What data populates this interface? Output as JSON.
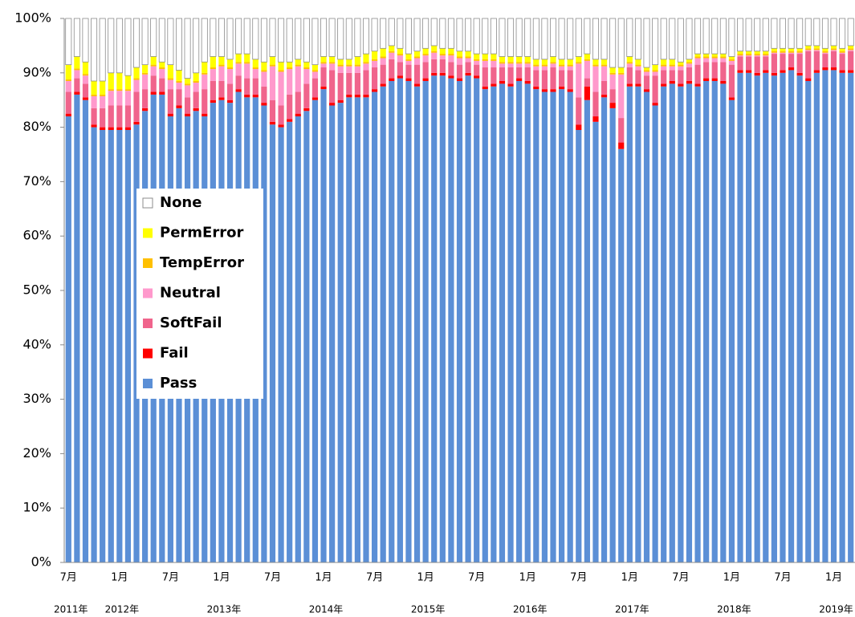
{
  "chart_data": {
    "type": "stacked_bar",
    "categories": [
      "7月",
      null,
      null,
      null,
      null,
      null,
      "1月",
      null,
      null,
      null,
      null,
      null,
      "7月",
      null,
      null,
      null,
      null,
      null,
      "1月",
      null,
      null,
      null,
      null,
      null,
      "7月",
      null,
      null,
      null,
      null,
      null,
      "1月",
      null,
      null,
      null,
      null,
      null,
      "7月",
      null,
      null,
      null,
      null,
      null,
      "1月",
      null,
      null,
      null,
      null,
      null,
      "7月",
      null,
      null,
      null,
      null,
      null,
      "1月",
      null,
      null,
      null,
      null,
      null,
      "7月",
      null,
      null,
      null,
      null,
      null,
      "1月",
      null,
      null,
      null,
      null,
      null,
      "7月",
      null,
      null,
      null,
      null,
      null,
      "1月",
      null,
      null,
      null,
      null,
      null,
      "7月",
      null,
      null,
      null,
      null,
      null,
      "1月",
      null,
      null
    ],
    "year_categories": [
      "2011年",
      null,
      null,
      null,
      null,
      null,
      "2012年",
      null,
      null,
      null,
      null,
      null,
      null,
      null,
      null,
      null,
      null,
      null,
      "2013年",
      null,
      null,
      null,
      null,
      null,
      null,
      null,
      null,
      null,
      null,
      null,
      "2014年",
      null,
      null,
      null,
      null,
      null,
      null,
      null,
      null,
      null,
      null,
      null,
      "2015年",
      null,
      null,
      null,
      null,
      null,
      null,
      null,
      null,
      null,
      null,
      null,
      "2016年",
      null,
      null,
      null,
      null,
      null,
      null,
      null,
      null,
      null,
      null,
      null,
      "2017年",
      null,
      null,
      null,
      null,
      null,
      null,
      null,
      null,
      null,
      null,
      null,
      "2018年",
      null,
      null,
      null,
      null,
      null,
      null,
      null,
      null,
      null,
      null,
      null,
      "2019年",
      null,
      null
    ],
    "series": [
      {
        "name": "Pass",
        "color": "#5b8fd6",
        "values": [
          82,
          86,
          85,
          80,
          79.5,
          79.5,
          79.5,
          79.5,
          80.5,
          83,
          86,
          86,
          82,
          83.5,
          82,
          83,
          82,
          84.5,
          85,
          84.5,
          86.5,
          85.5,
          85.5,
          84,
          80.5,
          80,
          81,
          82,
          83,
          85,
          87,
          84,
          84.5,
          85.5,
          85.5,
          85.5,
          86.5,
          87.5,
          88.5,
          89,
          88.5,
          87.5,
          88.5,
          89.5,
          89.5,
          89,
          88.5,
          89.5,
          89,
          87,
          87.5,
          88,
          87.5,
          88.5,
          88,
          87,
          86.5,
          86.5,
          87,
          86.5,
          79.5,
          85,
          81,
          85.5,
          83.5,
          76,
          87.5,
          87.5,
          86.5,
          84,
          87.5,
          88,
          87.5,
          88,
          87.5,
          88.5,
          88.5,
          88,
          85,
          90,
          90,
          89.5,
          90,
          89.5,
          90,
          90.5,
          89.5,
          88.5,
          90,
          90.5,
          90.5,
          90,
          90
        ]
      },
      {
        "name": "Fail",
        "color": "#ff0000",
        "values": [
          0.5,
          0.5,
          0.5,
          0.5,
          0.5,
          0.5,
          0.5,
          0.5,
          0.5,
          0.5,
          0.5,
          0.5,
          0.5,
          0.5,
          0.5,
          0.5,
          0.5,
          0.5,
          0.5,
          0.5,
          0.5,
          0.5,
          0.5,
          0.5,
          0.5,
          0.5,
          0.5,
          0.5,
          0.5,
          0.5,
          0.5,
          0.5,
          0.5,
          0.5,
          0.5,
          0.5,
          0.5,
          0.5,
          0.5,
          0.5,
          0.5,
          0.5,
          0.5,
          0.5,
          0.5,
          0.5,
          0.5,
          0.5,
          0.5,
          0.5,
          0.5,
          0.5,
          0.5,
          0.5,
          0.5,
          0.5,
          0.5,
          0.5,
          0.5,
          0.5,
          1,
          2.5,
          1,
          0.5,
          1,
          1.2,
          0.5,
          0.5,
          0.5,
          0.5,
          0.5,
          0.5,
          0.5,
          0.5,
          0.5,
          0.5,
          0.5,
          0.5,
          0.5,
          0.5,
          0.5,
          0.5,
          0.5,
          0.5,
          0.5,
          0.5,
          0.5,
          0.5,
          0.5,
          0.5,
          0.5,
          0.5,
          0.5
        ]
      },
      {
        "name": "SoftFail",
        "color": "#f0648c",
        "values": [
          4,
          2.5,
          2.5,
          3,
          3.5,
          4,
          4,
          4,
          5.5,
          3.5,
          3,
          2.5,
          4.5,
          3,
          3,
          3,
          4.5,
          3.5,
          3,
          3,
          2.5,
          3,
          3,
          3,
          4,
          3.5,
          4.5,
          4,
          4.5,
          3.5,
          3.5,
          6,
          5,
          4,
          4,
          4.5,
          4,
          3.5,
          3.5,
          2.5,
          2.5,
          3.5,
          3,
          2.5,
          2.5,
          2.5,
          2.5,
          2,
          2,
          3.5,
          3,
          2.5,
          3,
          2,
          2.5,
          3,
          3.5,
          4,
          3,
          3.5,
          5,
          1.5,
          4.5,
          2.5,
          2.5,
          4.5,
          3,
          2.5,
          2.5,
          5,
          2.5,
          2,
          2.5,
          2.5,
          3.5,
          3,
          3,
          3.5,
          6,
          2.5,
          2.5,
          3,
          2.5,
          3.5,
          3,
          2.5,
          3.5,
          5,
          3.5,
          2.5,
          3,
          3,
          3.5
        ]
      },
      {
        "name": "Neutral",
        "color": "#ff99cc",
        "values": [
          2,
          1.5,
          1.5,
          2.2,
          2.2,
          2.7,
          2.7,
          2.7,
          2.2,
          2.7,
          1.7,
          1.7,
          1.7,
          1.2,
          2.2,
          1.7,
          2.7,
          2.2,
          2.7,
          2.7,
          2.2,
          2.7,
          1.7,
          2.7,
          6.2,
          6.2,
          4.7,
          4.7,
          2.7,
          1.2,
          0.7,
          1.2,
          1.2,
          1.2,
          1.2,
          1.2,
          1.2,
          1.2,
          1.2,
          1.2,
          0.7,
          1.2,
          1.2,
          1.2,
          0.7,
          1.2,
          1.2,
          0.7,
          0.7,
          1.2,
          1.2,
          0.7,
          0.7,
          0.7,
          0.7,
          0.7,
          0.7,
          0.7,
          0.7,
          0.7,
          6.2,
          3.2,
          4.7,
          2.7,
          2.7,
          8,
          0.7,
          0.7,
          0.7,
          0.7,
          0.7,
          0.7,
          0.7,
          0.7,
          1.2,
          0.7,
          0.7,
          0.7,
          0.7,
          0.2,
          0.2,
          0.2,
          0.2,
          0.2,
          0.2,
          0.2,
          0.2,
          0.2,
          0.2,
          0.2,
          0.2,
          0.2,
          0.2
        ]
      },
      {
        "name": "TempError",
        "color": "#ffc000",
        "values": [
          0.3,
          0.3,
          0.3,
          0.3,
          0.3,
          0.3,
          0.3,
          0.3,
          0.3,
          0.3,
          0.3,
          0.3,
          0.3,
          0.3,
          0.3,
          0.3,
          0.3,
          0.3,
          0.3,
          0.3,
          0.3,
          0.3,
          0.3,
          0.3,
          0.3,
          0.3,
          0.3,
          0.3,
          0.3,
          0.3,
          0.3,
          0.3,
          0.3,
          0.3,
          0.3,
          0.3,
          0.3,
          0.3,
          0.3,
          0.3,
          0.3,
          0.3,
          0.3,
          0.3,
          0.3,
          0.3,
          0.3,
          0.3,
          0.3,
          0.3,
          0.3,
          0.3,
          0.3,
          0.3,
          0.3,
          0.3,
          0.3,
          0.3,
          0.3,
          0.3,
          0.3,
          0.3,
          0.3,
          0.3,
          0.3,
          0.3,
          0.3,
          0.3,
          0.3,
          0.3,
          0.3,
          0.3,
          0.3,
          0.3,
          0.3,
          0.3,
          0.3,
          0.3,
          0.3,
          0.3,
          0.3,
          0.3,
          0.3,
          0.3,
          0.3,
          0.3,
          0.3,
          0.3,
          0.3,
          0.3,
          0.3,
          0.3,
          0.3
        ]
      },
      {
        "name": "PermError",
        "color": "#ffff00",
        "values": [
          2.7,
          2.2,
          2.2,
          2.5,
          2.5,
          3,
          3,
          2.5,
          2,
          1.5,
          1.5,
          1,
          2.5,
          2,
          1,
          1.5,
          2,
          2,
          1.5,
          1.5,
          1.5,
          1.5,
          1.5,
          1.5,
          1.5,
          1.5,
          1,
          1,
          1,
          1,
          1,
          1,
          1,
          1,
          1.5,
          1.5,
          1.5,
          1.5,
          1,
          1,
          1,
          1,
          1,
          1,
          1,
          1,
          1,
          1,
          1,
          1,
          1,
          1,
          1,
          1,
          1,
          1,
          1,
          1,
          1,
          1,
          1,
          1,
          1,
          1,
          1,
          1,
          1,
          1,
          0.5,
          1,
          1,
          1,
          0.5,
          0.5,
          0.5,
          0.5,
          0.5,
          0.5,
          0.5,
          0.5,
          0.5,
          0.5,
          0.5,
          0.5,
          0.5,
          0.5,
          0.5,
          0.5,
          0.5,
          0.5,
          0.5,
          0.5,
          0.5
        ]
      },
      {
        "name": "None",
        "color": "#ffffff",
        "edgecolor": "#8c8c8c",
        "values": [
          8.5,
          7,
          8,
          11.5,
          11.5,
          10,
          10,
          10.5,
          9,
          8.5,
          7,
          8,
          8.5,
          9.5,
          11,
          10,
          8,
          7,
          7,
          7.5,
          6.5,
          6.5,
          7.5,
          8,
          7,
          8,
          8,
          7.5,
          8,
          8.5,
          7,
          7,
          7.5,
          7.5,
          7,
          6.5,
          6,
          5.5,
          5,
          5.5,
          6.5,
          6,
          5.5,
          5,
          5.5,
          5.5,
          6,
          6,
          6.5,
          6.5,
          6.5,
          7,
          7,
          7,
          7,
          7.5,
          7.5,
          7,
          7.5,
          7.5,
          7,
          6.5,
          7.5,
          7.5,
          9,
          9,
          7,
          7.5,
          9,
          8.5,
          7.5,
          7.5,
          8,
          7.5,
          6.5,
          6.5,
          6.5,
          6.5,
          7,
          6,
          6,
          6,
          6,
          5.5,
          5.5,
          5.5,
          5.5,
          5,
          5,
          5.5,
          5,
          5.5,
          5
        ]
      }
    ],
    "ylim": [
      0,
      100
    ],
    "yticks": [
      {
        "value": 0,
        "label": "0%"
      },
      {
        "value": 10,
        "label": "10%"
      },
      {
        "value": 20,
        "label": "20%"
      },
      {
        "value": 30,
        "label": "30%"
      },
      {
        "value": 40,
        "label": "40%"
      },
      {
        "value": 50,
        "label": "50%"
      },
      {
        "value": 60,
        "label": "60%"
      },
      {
        "value": 70,
        "label": "70%"
      },
      {
        "value": 80,
        "label": "80%"
      },
      {
        "value": 90,
        "label": "90%"
      },
      {
        "value": 100,
        "label": "100%"
      }
    ],
    "grid": false,
    "legend": "upper left"
  }
}
